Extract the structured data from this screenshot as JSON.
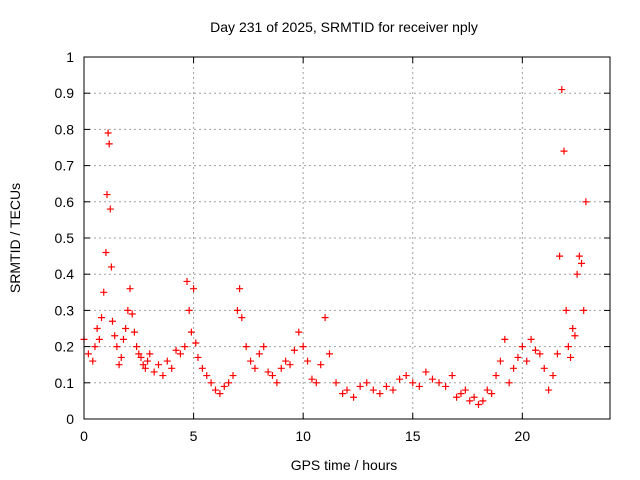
{
  "colors": {
    "points": "#ff0000",
    "grid": "#a0a0a0",
    "axis": "#000000"
  },
  "chart_data": {
    "type": "scatter",
    "title": "Day 231 of 2025, SRMTID for receiver nply",
    "xlabel": "GPS time / hours",
    "ylabel": "SRMTID / TECUs",
    "xlim": [
      0,
      24
    ],
    "ylim": [
      0,
      1
    ],
    "grid": true,
    "marker": "plus",
    "xticks": [
      0,
      5,
      10,
      15,
      20
    ],
    "xtick_labels": [
      "0",
      "5",
      "10",
      "15",
      "20"
    ],
    "yticks": [
      0,
      0.1,
      0.2,
      0.3,
      0.4,
      0.5,
      0.6,
      0.7,
      0.8,
      0.9,
      1
    ],
    "ytick_labels": [
      "0",
      "0.1",
      "0.2",
      "0.3",
      "0.4",
      "0.5",
      "0.6",
      "0.7",
      "0.8",
      "0.9",
      "1"
    ],
    "series": [
      {
        "name": "nply",
        "x": [
          0.0,
          0.2,
          0.4,
          0.5,
          0.6,
          0.7,
          0.8,
          0.9,
          1.0,
          1.05,
          1.1,
          1.15,
          1.2,
          1.25,
          1.3,
          1.4,
          1.5,
          1.6,
          1.7,
          1.8,
          1.9,
          2.0,
          2.1,
          2.2,
          2.3,
          2.4,
          2.5,
          2.6,
          2.7,
          2.8,
          2.9,
          3.0,
          3.2,
          3.4,
          3.6,
          3.8,
          4.0,
          4.2,
          4.4,
          4.6,
          4.7,
          4.8,
          4.9,
          5.0,
          5.1,
          5.2,
          5.4,
          5.6,
          5.8,
          6.0,
          6.2,
          6.4,
          6.6,
          6.8,
          7.0,
          7.1,
          7.2,
          7.4,
          7.6,
          7.8,
          8.0,
          8.2,
          8.4,
          8.6,
          8.8,
          9.0,
          9.2,
          9.4,
          9.6,
          9.8,
          10.0,
          10.2,
          10.4,
          10.6,
          10.8,
          11.0,
          11.2,
          11.5,
          11.8,
          12.0,
          12.3,
          12.6,
          12.9,
          13.2,
          13.5,
          13.8,
          14.1,
          14.4,
          14.7,
          15.0,
          15.3,
          15.6,
          15.9,
          16.2,
          16.5,
          16.8,
          17.0,
          17.2,
          17.4,
          17.6,
          17.8,
          18.0,
          18.2,
          18.4,
          18.6,
          18.8,
          19.0,
          19.2,
          19.4,
          19.6,
          19.8,
          20.0,
          20.2,
          20.4,
          20.6,
          20.8,
          21.0,
          21.2,
          21.4,
          21.6,
          21.7,
          21.8,
          21.9,
          22.0,
          22.1,
          22.2,
          22.3,
          22.4,
          22.5,
          22.6,
          22.7,
          22.8,
          22.9
        ],
        "y": [
          0.22,
          0.18,
          0.16,
          0.2,
          0.25,
          0.22,
          0.28,
          0.35,
          0.46,
          0.62,
          0.79,
          0.76,
          0.58,
          0.42,
          0.27,
          0.23,
          0.2,
          0.15,
          0.17,
          0.22,
          0.25,
          0.3,
          0.36,
          0.29,
          0.24,
          0.2,
          0.18,
          0.17,
          0.15,
          0.14,
          0.16,
          0.18,
          0.13,
          0.15,
          0.12,
          0.16,
          0.14,
          0.19,
          0.18,
          0.2,
          0.38,
          0.3,
          0.24,
          0.36,
          0.21,
          0.17,
          0.14,
          0.12,
          0.1,
          0.08,
          0.07,
          0.09,
          0.1,
          0.12,
          0.3,
          0.36,
          0.28,
          0.2,
          0.16,
          0.14,
          0.18,
          0.2,
          0.13,
          0.12,
          0.1,
          0.14,
          0.16,
          0.15,
          0.19,
          0.24,
          0.2,
          0.16,
          0.11,
          0.1,
          0.15,
          0.28,
          0.18,
          0.1,
          0.07,
          0.08,
          0.06,
          0.09,
          0.1,
          0.08,
          0.07,
          0.09,
          0.08,
          0.11,
          0.12,
          0.1,
          0.09,
          0.13,
          0.11,
          0.1,
          0.09,
          0.12,
          0.06,
          0.07,
          0.08,
          0.05,
          0.06,
          0.04,
          0.05,
          0.08,
          0.07,
          0.12,
          0.16,
          0.22,
          0.1,
          0.14,
          0.17,
          0.2,
          0.16,
          0.22,
          0.19,
          0.18,
          0.14,
          0.08,
          0.12,
          0.18,
          0.45,
          0.91,
          0.74,
          0.3,
          0.2,
          0.17,
          0.25,
          0.23,
          0.4,
          0.45,
          0.43,
          0.3,
          0.6
        ]
      }
    ]
  }
}
